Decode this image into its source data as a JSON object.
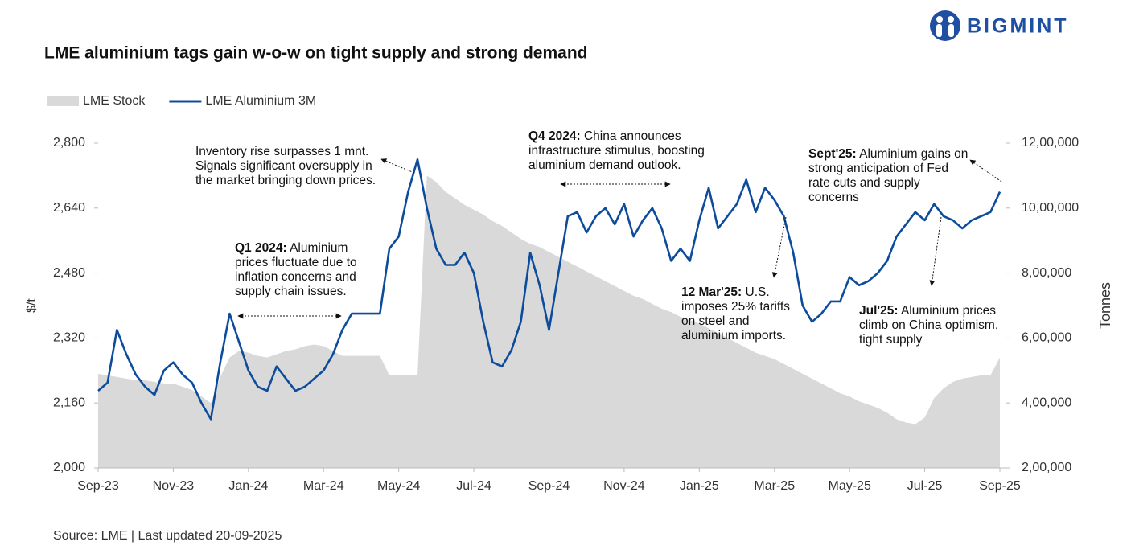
{
  "logo": "BIGMINT",
  "source": "Source: LME | Last updated 20-09-2025",
  "chart_data": {
    "type": "line",
    "title": "LME aluminium tags gain w-o-w on tight supply and strong demand",
    "ylabel": "$/t",
    "y2label": "Tonnes",
    "legend": "top-left",
    "grid": false,
    "categories": [
      "Sep-23",
      null,
      null,
      null,
      null,
      null,
      null,
      null,
      "Nov-23",
      null,
      null,
      null,
      null,
      null,
      null,
      null,
      "Jan-24",
      null,
      null,
      null,
      null,
      null,
      null,
      null,
      "Mar-24",
      null,
      null,
      null,
      null,
      null,
      null,
      null,
      "May-24",
      null,
      null,
      null,
      null,
      null,
      null,
      null,
      "Jul-24",
      null,
      null,
      null,
      null,
      null,
      null,
      null,
      "Sep-24",
      null,
      null,
      null,
      null,
      null,
      null,
      null,
      "Nov-24",
      null,
      null,
      null,
      null,
      null,
      null,
      null,
      "Jan-25",
      null,
      null,
      null,
      null,
      null,
      null,
      null,
      "Mar-25",
      null,
      null,
      null,
      null,
      null,
      null,
      null,
      "May-25",
      null,
      null,
      null,
      null,
      null,
      null,
      null,
      "Jul-25",
      null,
      null,
      null,
      null,
      null,
      null,
      null,
      "Sep-25"
    ],
    "series": [
      {
        "name": "LME Stock",
        "type": "area",
        "axis": "y2",
        "color": "#d9d9d9",
        "values": [
          490000,
          485000,
          480000,
          475000,
          470000,
          470000,
          465000,
          460000,
          460000,
          450000,
          440000,
          420000,
          400000,
          480000,
          540000,
          560000,
          555000,
          545000,
          540000,
          550000,
          560000,
          565000,
          575000,
          580000,
          575000,
          560000,
          545000,
          545000,
          545000,
          545000,
          545000,
          485000,
          485000,
          485000,
          485000,
          1100000,
          1080000,
          1050000,
          1030000,
          1010000,
          995000,
          980000,
          960000,
          945000,
          925000,
          905000,
          890000,
          880000,
          865000,
          850000,
          835000,
          820000,
          805000,
          790000,
          775000,
          760000,
          745000,
          730000,
          720000,
          705000,
          690000,
          680000,
          665000,
          655000,
          645000,
          630000,
          615000,
          600000,
          585000,
          570000,
          555000,
          545000,
          535000,
          520000,
          505000,
          490000,
          475000,
          460000,
          445000,
          430000,
          420000,
          405000,
          395000,
          385000,
          370000,
          350000,
          340000,
          335000,
          355000,
          415000,
          445000,
          465000,
          475000,
          480000,
          485000,
          485000,
          540000
        ]
      },
      {
        "name": "LME Aluminium 3M",
        "type": "line",
        "color": "#0d4c9c",
        "values": [
          2190,
          2210,
          2340,
          2280,
          2230,
          2200,
          2180,
          2240,
          2260,
          2230,
          2210,
          2160,
          2120,
          2260,
          2380,
          2310,
          2240,
          2200,
          2190,
          2250,
          2220,
          2190,
          2200,
          2220,
          2240,
          2280,
          2340,
          2380,
          2380,
          2380,
          2380,
          2540,
          2570,
          2680,
          2760,
          2640,
          2540,
          2500,
          2500,
          2530,
          2480,
          2360,
          2260,
          2250,
          2290,
          2360,
          2530,
          2450,
          2340,
          2480,
          2620,
          2630,
          2580,
          2620,
          2640,
          2600,
          2650,
          2570,
          2610,
          2640,
          2590,
          2510,
          2540,
          2510,
          2610,
          2690,
          2590,
          2620,
          2650,
          2710,
          2630,
          2690,
          2660,
          2620,
          2530,
          2400,
          2360,
          2380,
          2410,
          2410,
          2470,
          2450,
          2460,
          2480,
          2510,
          2570,
          2600,
          2630,
          2610,
          2650,
          2620,
          2610,
          2590,
          2610,
          2620,
          2630,
          2680
        ]
      }
    ],
    "ylim": [
      2000,
      2800
    ],
    "yticks": [
      {
        "value": 2000,
        "label": "2,000"
      },
      {
        "value": 2160,
        "label": "2,160"
      },
      {
        "value": 2320,
        "label": "2,320"
      },
      {
        "value": 2480,
        "label": "2,480"
      },
      {
        "value": 2640,
        "label": "2,640"
      },
      {
        "value": 2800,
        "label": "2,800"
      }
    ],
    "y2lim": [
      200000,
      1200000
    ],
    "y2ticks": [
      {
        "value": 200000,
        "label": "2,00,000"
      },
      {
        "value": 400000,
        "label": "4,00,000"
      },
      {
        "value": 600000,
        "label": "6,00,000"
      },
      {
        "value": 800000,
        "label": "8,00,000"
      },
      {
        "value": 1000000,
        "label": "10,00,000"
      },
      {
        "value": 1200000,
        "label": "12,00,000"
      }
    ],
    "annotations": [
      {
        "text": "Inventory rise surpasses 1 mnt. Signals significant oversupply in the market bringing down prices."
      },
      {
        "bold": "Q1 2024:",
        "text": "Aluminium prices fluctuate due to inflation concerns and supply chain issues."
      },
      {
        "bold": "Q4 2024:",
        "text": "China announces infrastructure stimulus, boosting aluminium demand outlook."
      },
      {
        "bold": "12 Mar'25:",
        "text": "U.S. imposes 25% tariffs on steel and aluminium imports."
      },
      {
        "bold": "Jul'25:",
        "text": "Aluminium prices climb on China optimism, tight supply"
      },
      {
        "bold": "Sept'25:",
        "text": "Aluminium gains on strong anticipation of Fed rate cuts and supply concerns"
      }
    ]
  }
}
